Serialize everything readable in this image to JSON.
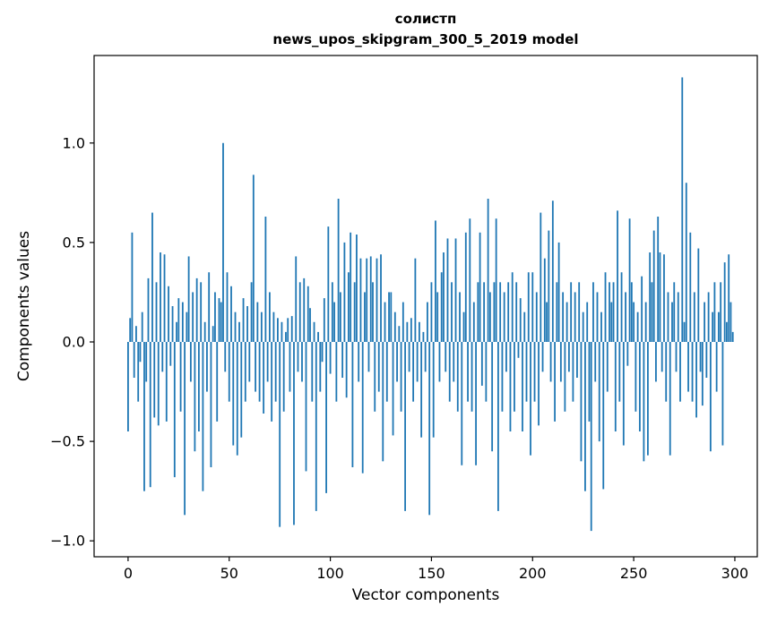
{
  "header": {
    "title_line1": "солистп",
    "title_line2": "news_upos_skipgram_300_5_2019 model"
  },
  "chart_data": {
    "type": "bar",
    "title": "солистп",
    "subtitle": "news_upos_skipgram_300_5_2019 model",
    "xlabel": "Vector components",
    "ylabel": "Components values",
    "bar_color": "#1f77b4",
    "axis_color": "#000000",
    "grid": false,
    "legend_position": "none",
    "xlim": [
      -16.8,
      311.1
    ],
    "ylim": [
      -1.08,
      1.44
    ],
    "x_ticks": [
      0,
      50,
      100,
      150,
      200,
      250,
      300
    ],
    "x_tick_labels": [
      "0",
      "50",
      "100",
      "150",
      "200",
      "250",
      "300"
    ],
    "y_ticks": [
      -1.0,
      -0.5,
      0.0,
      0.5,
      1.0
    ],
    "y_tick_labels": [
      "−1.0",
      "−0.5",
      "0.0",
      "0.5",
      "1.0"
    ],
    "n_components": 300,
    "values": [
      -0.45,
      0.12,
      0.55,
      -0.18,
      0.08,
      -0.3,
      -0.1,
      0.15,
      -0.75,
      -0.2,
      0.32,
      -0.73,
      0.65,
      -0.38,
      0.3,
      -0.42,
      0.45,
      -0.15,
      0.44,
      -0.4,
      0.28,
      -0.12,
      0.18,
      -0.68,
      0.1,
      0.22,
      -0.35,
      0.2,
      -0.87,
      0.15,
      0.43,
      -0.2,
      0.25,
      -0.55,
      0.32,
      -0.45,
      0.3,
      -0.75,
      0.1,
      -0.25,
      0.35,
      -0.63,
      0.08,
      0.25,
      -0.4,
      0.22,
      0.2,
      1.0,
      -0.15,
      0.35,
      -0.3,
      0.28,
      -0.52,
      0.15,
      -0.57,
      0.1,
      -0.48,
      0.22,
      -0.3,
      0.18,
      -0.2,
      0.3,
      0.84,
      -0.25,
      0.2,
      -0.3,
      0.15,
      -0.36,
      0.63,
      -0.2,
      0.25,
      -0.4,
      0.15,
      -0.3,
      0.12,
      -0.93,
      0.1,
      -0.35,
      0.05,
      0.12,
      -0.25,
      0.13,
      -0.92,
      0.43,
      -0.15,
      0.3,
      -0.2,
      0.32,
      -0.65,
      0.28,
      0.17,
      -0.3,
      0.1,
      -0.85,
      0.05,
      -0.25,
      -0.1,
      0.22,
      -0.76,
      0.58,
      -0.16,
      0.3,
      0.2,
      -0.3,
      0.72,
      0.25,
      -0.18,
      0.5,
      -0.28,
      0.35,
      0.55,
      -0.63,
      0.3,
      0.54,
      -0.2,
      0.42,
      -0.66,
      0.25,
      0.42,
      -0.15,
      0.43,
      0.3,
      -0.35,
      0.42,
      -0.25,
      0.44,
      -0.6,
      0.2,
      -0.3,
      0.25,
      0.25,
      -0.47,
      0.15,
      -0.2,
      0.08,
      -0.35,
      0.2,
      -0.85,
      0.1,
      -0.15,
      0.12,
      -0.3,
      0.42,
      -0.2,
      0.1,
      -0.48,
      0.05,
      -0.15,
      0.2,
      -0.87,
      0.3,
      -0.48,
      0.61,
      0.25,
      -0.2,
      0.35,
      0.45,
      -0.15,
      0.52,
      -0.3,
      0.3,
      -0.2,
      0.52,
      -0.35,
      0.25,
      -0.62,
      0.15,
      0.55,
      -0.3,
      0.62,
      -0.35,
      0.2,
      -0.62,
      0.3,
      0.55,
      -0.22,
      0.3,
      -0.3,
      0.72,
      0.25,
      -0.55,
      0.3,
      0.62,
      -0.85,
      0.3,
      -0.35,
      0.25,
      -0.15,
      0.3,
      -0.45,
      0.35,
      -0.35,
      0.3,
      -0.08,
      0.22,
      -0.45,
      0.15,
      -0.3,
      0.35,
      -0.57,
      0.35,
      -0.3,
      0.25,
      -0.42,
      0.65,
      -0.15,
      0.42,
      0.2,
      0.56,
      -0.2,
      0.71,
      -0.4,
      0.3,
      0.5,
      -0.2,
      0.25,
      -0.35,
      0.2,
      -0.15,
      0.3,
      -0.3,
      0.25,
      -0.18,
      0.3,
      -0.6,
      0.15,
      -0.75,
      0.2,
      -0.4,
      -0.95,
      0.3,
      -0.2,
      0.25,
      -0.5,
      0.15,
      -0.74,
      0.35,
      -0.25,
      0.3,
      0.2,
      0.3,
      -0.45,
      0.66,
      -0.3,
      0.35,
      -0.52,
      0.25,
      -0.12,
      0.62,
      0.3,
      0.2,
      -0.35,
      0.15,
      -0.45,
      0.33,
      -0.6,
      0.2,
      -0.57,
      0.45,
      0.3,
      0.56,
      -0.2,
      0.63,
      0.45,
      -0.15,
      0.44,
      -0.3,
      0.25,
      -0.57,
      0.2,
      0.3,
      -0.15,
      0.25,
      -0.3,
      1.33,
      0.1,
      0.8,
      -0.25,
      0.55,
      -0.3,
      0.25,
      -0.38,
      0.47,
      -0.15,
      -0.32,
      0.2,
      -0.18,
      0.25,
      -0.55,
      0.15,
      0.3,
      -0.25,
      0.15,
      0.3,
      -0.52,
      0.4,
      0.1,
      0.44,
      0.2,
      0.05
    ]
  }
}
